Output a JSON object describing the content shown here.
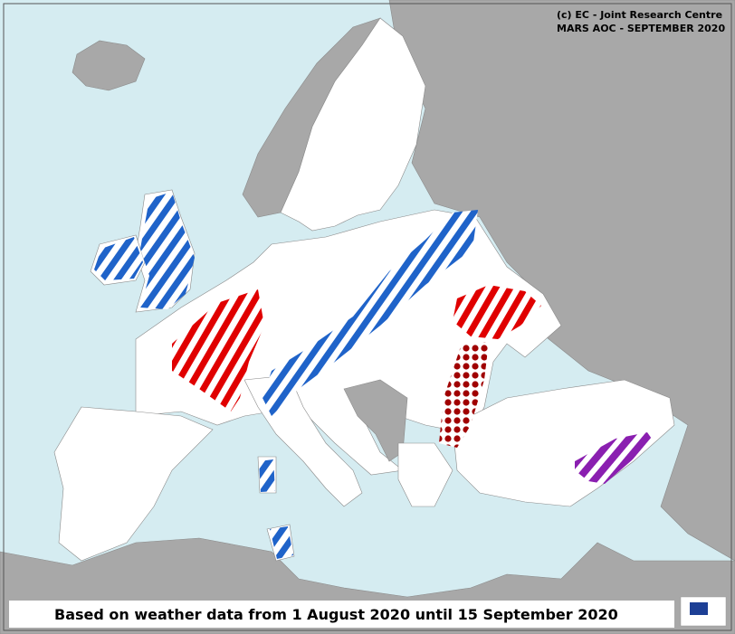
{
  "credits": [
    "(c) EC - Joint Research Centre",
    "MARS AOC - SEPTEMBER 2020"
  ],
  "caption": "Based on weather data from 1 August 2020 until 15 September 2020"
}
